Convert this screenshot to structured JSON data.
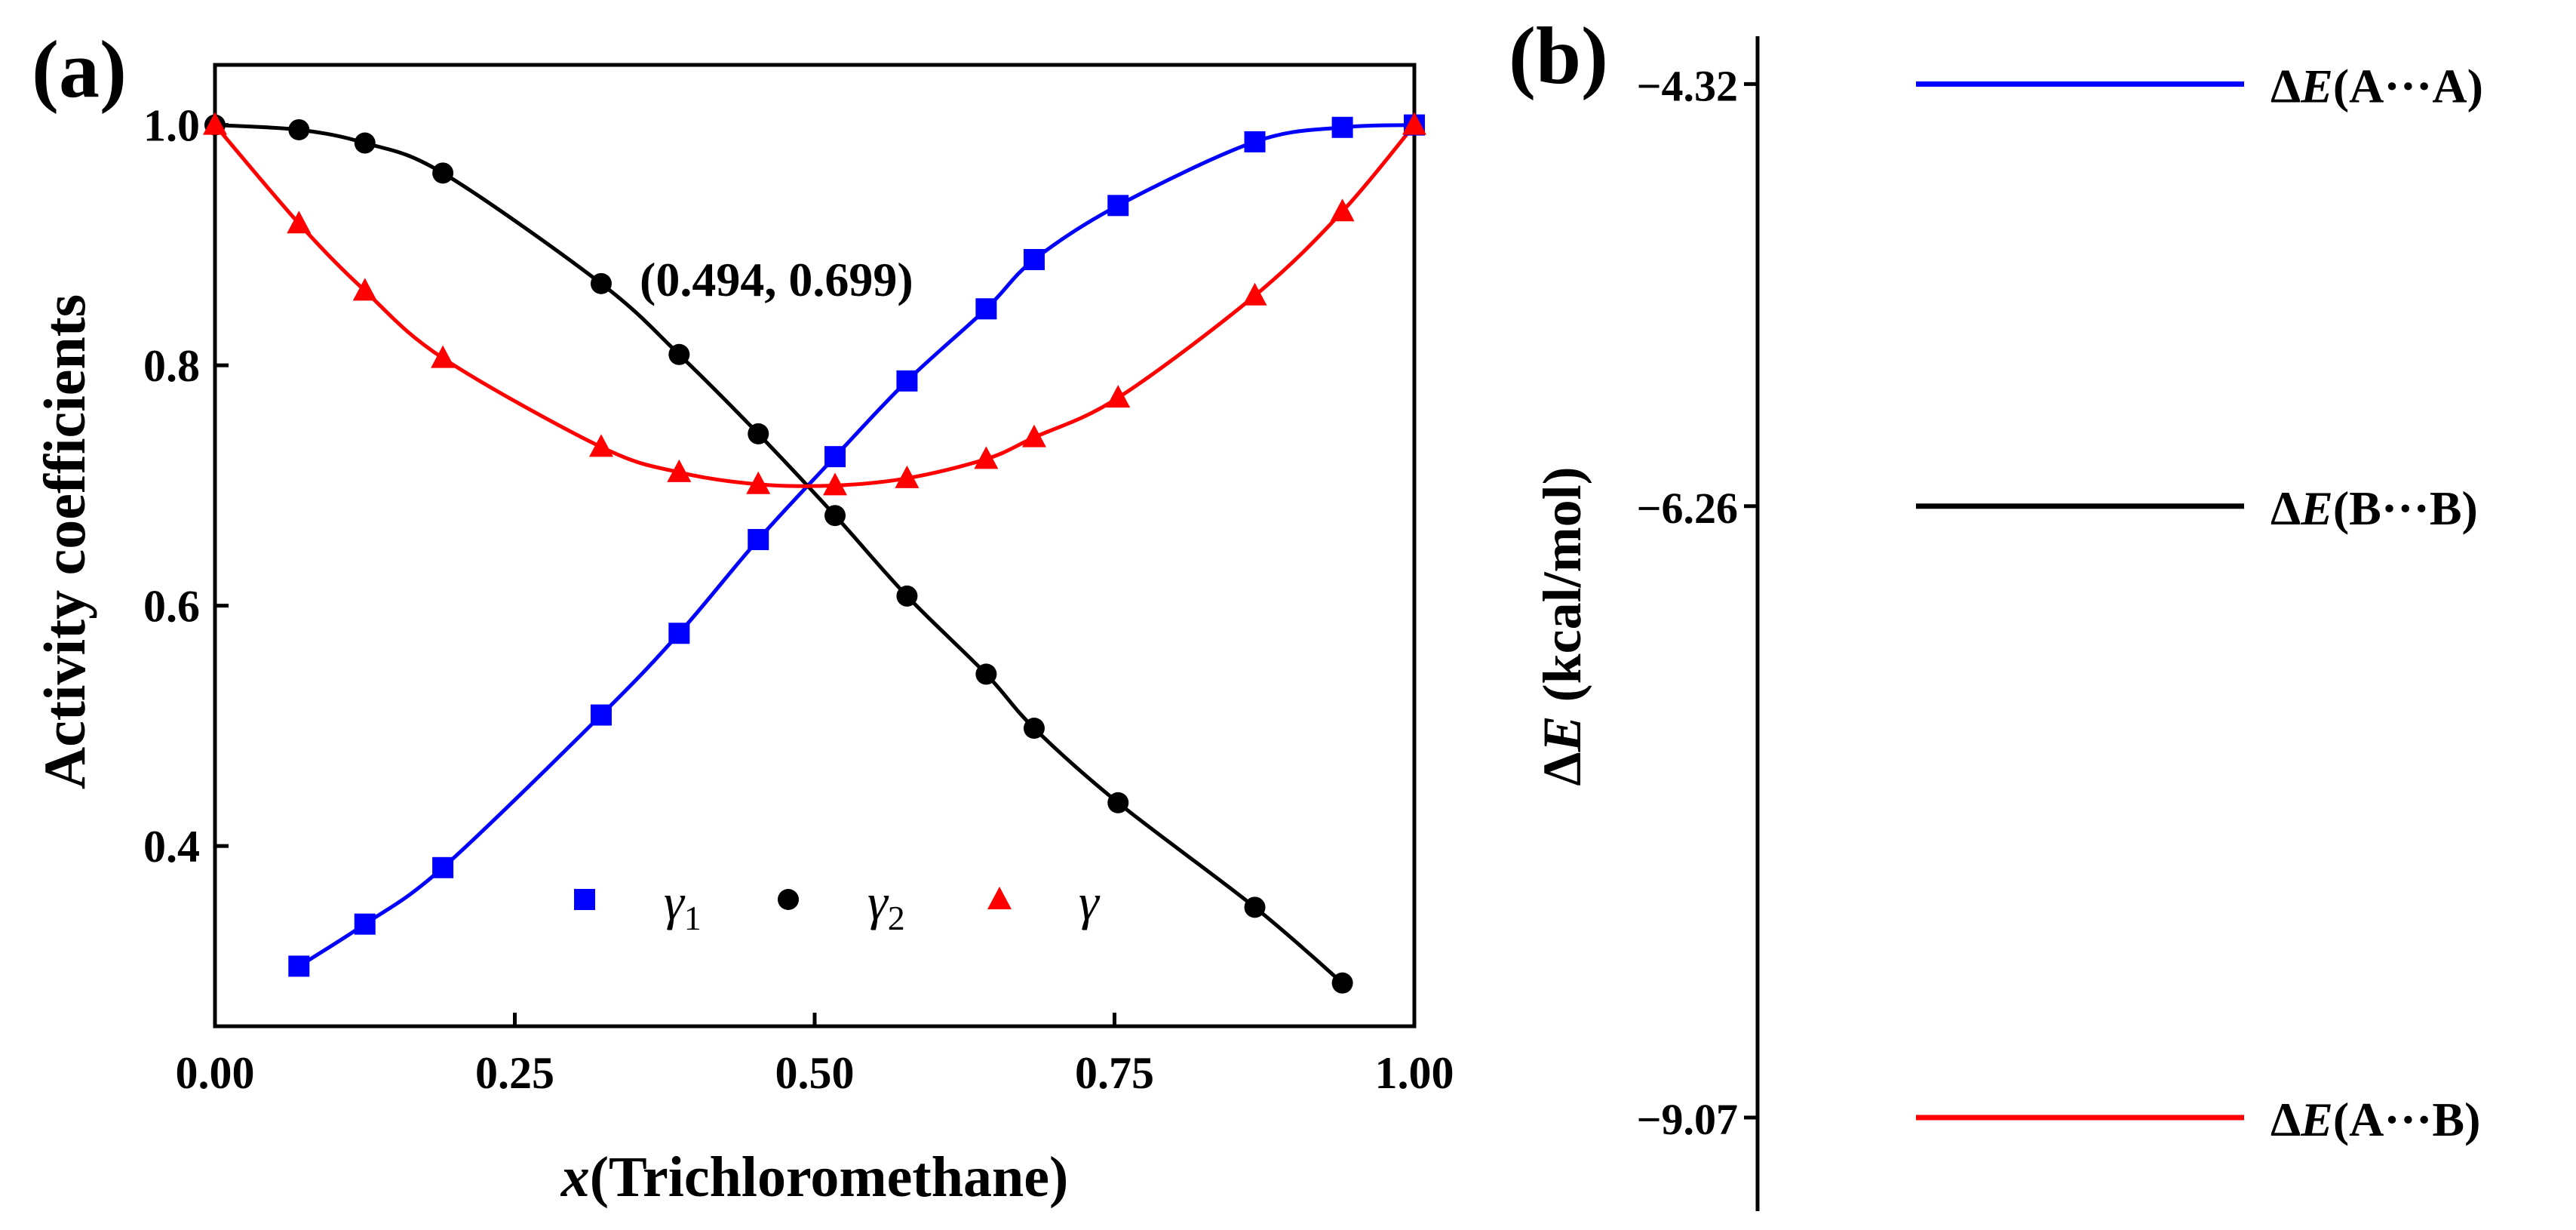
{
  "chart_data": [
    {
      "panel": "(a)",
      "type": "line",
      "xlabel_var": "x",
      "xlabel_rest": "(Trichloromethane)",
      "ylabel": "Activity coefficients",
      "xlim": [
        0.0,
        1.0
      ],
      "ylim": [
        0.25,
        1.05
      ],
      "xticks": [
        0.0,
        0.25,
        0.5,
        0.75,
        1.0
      ],
      "xtick_labels": [
        "0.00",
        "0.25",
        "0.50",
        "0.75",
        "1.00"
      ],
      "yticks": [
        0.4,
        0.6,
        0.8,
        1.0
      ],
      "ytick_labels": [
        "0.4",
        "0.6",
        "0.8",
        "1.0"
      ],
      "annotation": {
        "text": "(0.494, 0.699)",
        "x": 0.494,
        "y": 0.699
      },
      "legend": {
        "placement": "bottom-center",
        "entries": [
          "γ1",
          "γ2",
          "γ"
        ]
      },
      "series": [
        {
          "name": "γ1",
          "legend_main": "γ",
          "legend_sub": "1",
          "color": "#0000ff",
          "marker": "square",
          "x": [
            0.07,
            0.125,
            0.19,
            0.322,
            0.387,
            0.453,
            0.517,
            0.577,
            0.643,
            0.683,
            0.753,
            0.867,
            0.94,
            1.0
          ],
          "y": [
            0.3,
            0.335,
            0.382,
            0.509,
            0.577,
            0.655,
            0.724,
            0.787,
            0.847,
            0.888,
            0.933,
            0.986,
            0.998,
            1.0
          ]
        },
        {
          "name": "γ2",
          "legend_main": "γ",
          "legend_sub": "2",
          "color": "#000000",
          "marker": "circle",
          "x": [
            0.0,
            0.07,
            0.125,
            0.19,
            0.322,
            0.387,
            0.453,
            0.517,
            0.577,
            0.643,
            0.683,
            0.753,
            0.867,
            0.94
          ],
          "y": [
            1.0,
            0.996,
            0.985,
            0.96,
            0.868,
            0.809,
            0.743,
            0.675,
            0.608,
            0.543,
            0.498,
            0.436,
            0.349,
            0.286
          ]
        },
        {
          "name": "γ",
          "legend_main": "γ",
          "legend_sub": "",
          "color": "#ff0000",
          "marker": "triangle",
          "x": [
            0.0,
            0.07,
            0.125,
            0.19,
            0.322,
            0.387,
            0.453,
            0.517,
            0.577,
            0.643,
            0.683,
            0.753,
            0.867,
            0.94,
            1.0
          ],
          "y": [
            1.0,
            0.918,
            0.862,
            0.806,
            0.732,
            0.711,
            0.701,
            0.7,
            0.706,
            0.722,
            0.74,
            0.773,
            0.858,
            0.928,
            1.0
          ]
        }
      ]
    },
    {
      "panel": "(b)",
      "type": "level-diagram",
      "ylabel_prefix": "Δ",
      "ylabel_var": "E",
      "ylabel_unit": " (kcal/mol)",
      "ylim": [
        -9.5,
        -4.1
      ],
      "levels": [
        {
          "value": -4.32,
          "tick_label": "−4.32",
          "color": "#0000ff",
          "prefix": "Δ",
          "var": "E",
          "pair": "(A···A)"
        },
        {
          "value": -6.26,
          "tick_label": "−6.26",
          "color": "#000000",
          "prefix": "Δ",
          "var": "E",
          "pair": "(B···B)"
        },
        {
          "value": -9.07,
          "tick_label": "−9.07",
          "color": "#ff0000",
          "prefix": "Δ",
          "var": "E",
          "pair": "(A···B)"
        }
      ]
    }
  ]
}
